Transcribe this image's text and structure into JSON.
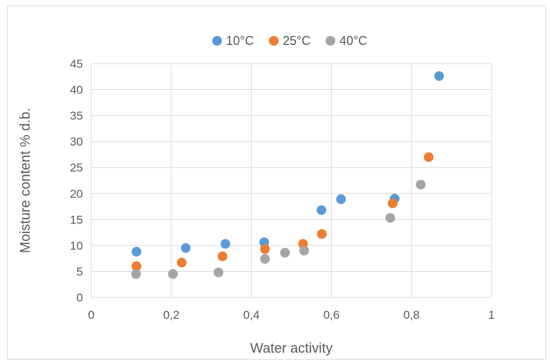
{
  "chart_data": {
    "type": "scatter",
    "xlabel": "Water activity",
    "ylabel": "Moisture content % d.b.",
    "xlim": [
      0,
      1
    ],
    "ylim": [
      0,
      45
    ],
    "x_ticks": [
      "0",
      "0,2",
      "0,4",
      "0,6",
      "0,8",
      "1"
    ],
    "x_tick_values": [
      0,
      0.2,
      0.4,
      0.6,
      0.8,
      1
    ],
    "y_ticks": [
      "0",
      "5",
      "10",
      "15",
      "20",
      "25",
      "30",
      "35",
      "40",
      "45"
    ],
    "y_tick_values": [
      0,
      5,
      10,
      15,
      20,
      25,
      30,
      35,
      40,
      45
    ],
    "grid": true,
    "legend_position": "top",
    "series": [
      {
        "name": "10°C",
        "color": "#5b9bd5",
        "points": [
          [
            0.113,
            8.8
          ],
          [
            0.236,
            9.5
          ],
          [
            0.335,
            10.3
          ],
          [
            0.432,
            10.6
          ],
          [
            0.575,
            16.8
          ],
          [
            0.624,
            18.9
          ],
          [
            0.758,
            19.0
          ],
          [
            0.869,
            42.6
          ]
        ]
      },
      {
        "name": "25°C",
        "color": "#ed7d31",
        "points": [
          [
            0.113,
            6.0
          ],
          [
            0.226,
            6.7
          ],
          [
            0.328,
            7.9
          ],
          [
            0.434,
            9.3
          ],
          [
            0.529,
            10.3
          ],
          [
            0.576,
            12.2
          ],
          [
            0.753,
            18.1
          ],
          [
            0.843,
            27.0
          ]
        ]
      },
      {
        "name": "40°C",
        "color": "#a5a5a5",
        "points": [
          [
            0.112,
            4.5
          ],
          [
            0.204,
            4.5
          ],
          [
            0.318,
            4.8
          ],
          [
            0.434,
            7.4
          ],
          [
            0.484,
            8.6
          ],
          [
            0.532,
            9.0
          ],
          [
            0.747,
            15.3
          ],
          [
            0.823,
            21.7
          ]
        ]
      }
    ]
  }
}
